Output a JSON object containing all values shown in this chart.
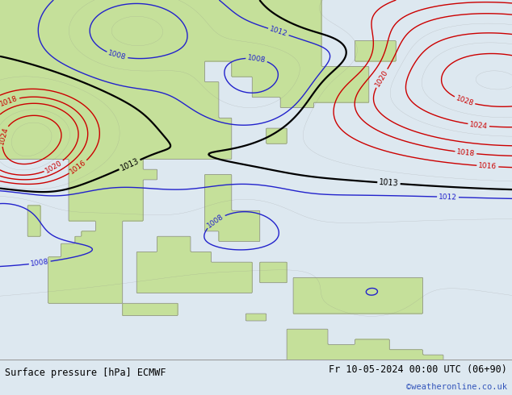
{
  "title_left": "Surface pressure [hPa] ECMWF",
  "title_right": "Fr 10-05-2024 00:00 UTC (06+90)",
  "copyright": "©weatheronline.co.uk",
  "bg_ocean": "#dde8f0",
  "land_color": "#c5e09a",
  "bottom_bar_color": "#d4d4d4",
  "title_fontsize": 8.5,
  "copyright_color": "#3355bb",
  "lon_min": 88,
  "lon_max": 163,
  "lat_min": -17,
  "lat_max": 53
}
